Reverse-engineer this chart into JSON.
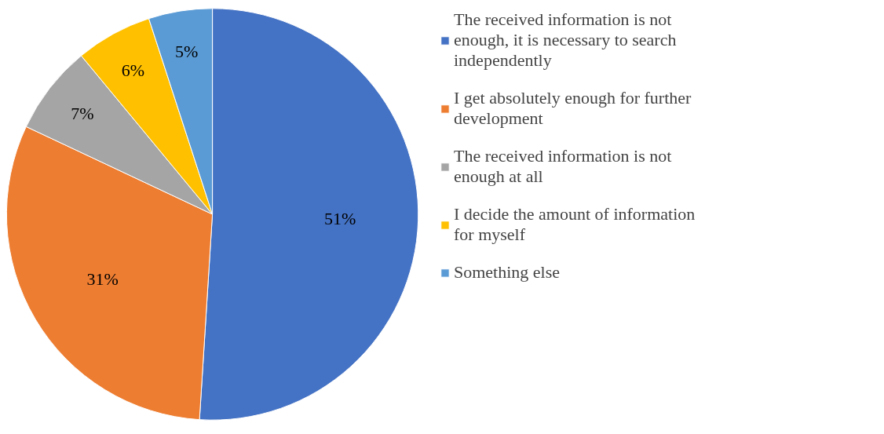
{
  "chart_data": {
    "type": "pie",
    "categories": [
      "The received information is not enough, it is necessary to search independently",
      "I get absolutely enough for further development",
      "The received information is not enough at all",
      "I decide the amount of information for myself",
      "Something else"
    ],
    "values": [
      51,
      31,
      7,
      6,
      5
    ],
    "colors": [
      "#4472c4",
      "#ed7d31",
      "#a5a5a5",
      "#ffc000",
      "#5b9bd5"
    ],
    "value_labels": [
      "51%",
      "31%",
      "7%",
      "6%",
      "5%"
    ],
    "legend": "right"
  }
}
